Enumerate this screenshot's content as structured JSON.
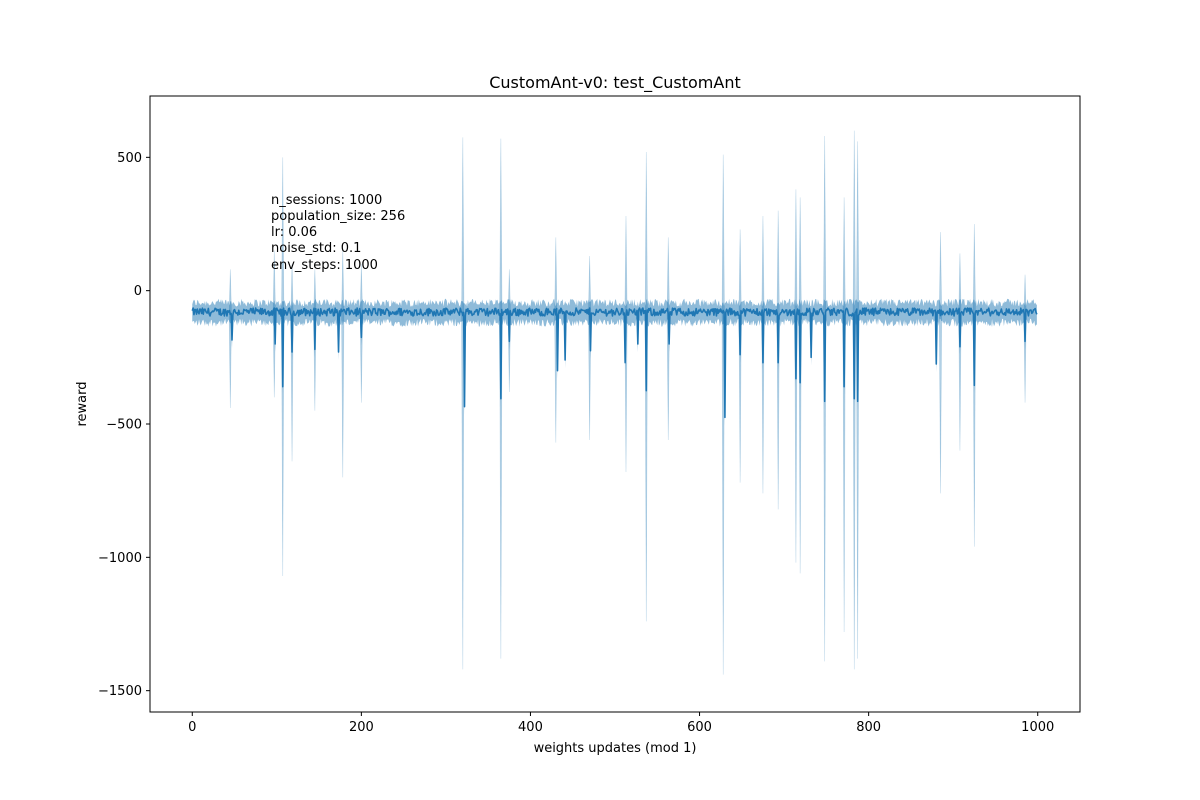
{
  "chart_data": {
    "type": "line",
    "title": "CustomAnt-v0: test_CustomAnt",
    "xlabel": "weights updates (mod 1)",
    "ylabel": "reward",
    "xlim": [
      -50,
      1050
    ],
    "ylim": [
      -1580,
      730
    ],
    "x_ticks": [
      0,
      200,
      400,
      600,
      800,
      1000
    ],
    "x_tick_labels": [
      "0",
      "200",
      "400",
      "600",
      "800",
      "1000"
    ],
    "y_ticks": [
      500,
      0,
      -500,
      -1000,
      -1500
    ],
    "y_tick_labels": [
      "500",
      "0",
      "−500",
      "−1000",
      "−1500"
    ],
    "grid": false,
    "line_color": "#1f77b4",
    "band_color": "#1f77b4",
    "band_fill_opacity": 0.5,
    "spike_opacity": 0.35,
    "annotation_lines": [
      "n_sessions: 1000",
      "population_size: 256",
      "lr: 0.06",
      "noise_std: 0.1",
      "env_steps: 1000"
    ],
    "series": [
      {
        "x_start": 0,
        "x_end": 999,
        "baseline_mean": -80,
        "band_upper_typical": -45,
        "band_lower_typical": -120,
        "mean_dips": [
          {
            "x": 47,
            "y": -185
          },
          {
            "x": 98,
            "y": -200
          },
          {
            "x": 107,
            "y": -360
          },
          {
            "x": 118,
            "y": -230
          },
          {
            "x": 145,
            "y": -220
          },
          {
            "x": 173,
            "y": -230
          },
          {
            "x": 200,
            "y": -175
          },
          {
            "x": 322,
            "y": -435
          },
          {
            "x": 365,
            "y": -405
          },
          {
            "x": 375,
            "y": -190
          },
          {
            "x": 432,
            "y": -300
          },
          {
            "x": 441,
            "y": -260
          },
          {
            "x": 471,
            "y": -225
          },
          {
            "x": 512,
            "y": -270
          },
          {
            "x": 527,
            "y": -200
          },
          {
            "x": 537,
            "y": -375
          },
          {
            "x": 564,
            "y": -200
          },
          {
            "x": 630,
            "y": -475
          },
          {
            "x": 648,
            "y": -240
          },
          {
            "x": 675,
            "y": -270
          },
          {
            "x": 693,
            "y": -270
          },
          {
            "x": 714,
            "y": -330
          },
          {
            "x": 719,
            "y": -345
          },
          {
            "x": 732,
            "y": -250
          },
          {
            "x": 748,
            "y": -415
          },
          {
            "x": 771,
            "y": -360
          },
          {
            "x": 783,
            "y": -405
          },
          {
            "x": 787,
            "y": -415
          },
          {
            "x": 880,
            "y": -275
          },
          {
            "x": 908,
            "y": -210
          },
          {
            "x": 925,
            "y": -355
          },
          {
            "x": 985,
            "y": -190
          }
        ],
        "band_spikes": [
          {
            "x": 45,
            "lower": -440,
            "upper": 80
          },
          {
            "x": 97,
            "lower": -400,
            "upper": 150
          },
          {
            "x": 107,
            "lower": -1070,
            "upper": 500
          },
          {
            "x": 118,
            "lower": -640,
            "upper": 100
          },
          {
            "x": 145,
            "lower": -450,
            "upper": 80
          },
          {
            "x": 178,
            "lower": -700,
            "upper": 150
          },
          {
            "x": 200,
            "lower": -420,
            "upper": 100
          },
          {
            "x": 320,
            "lower": -1420,
            "upper": 575
          },
          {
            "x": 365,
            "lower": -1380,
            "upper": 570
          },
          {
            "x": 375,
            "lower": -380,
            "upper": 80
          },
          {
            "x": 430,
            "lower": -570,
            "upper": 200
          },
          {
            "x": 470,
            "lower": -560,
            "upper": 130
          },
          {
            "x": 513,
            "lower": -680,
            "upper": 280
          },
          {
            "x": 537,
            "lower": -1240,
            "upper": 520
          },
          {
            "x": 563,
            "lower": -560,
            "upper": 200
          },
          {
            "x": 628,
            "lower": -1440,
            "upper": 510
          },
          {
            "x": 648,
            "lower": -720,
            "upper": 230
          },
          {
            "x": 675,
            "lower": -760,
            "upper": 280
          },
          {
            "x": 693,
            "lower": -820,
            "upper": 300
          },
          {
            "x": 714,
            "lower": -1020,
            "upper": 380
          },
          {
            "x": 719,
            "lower": -1060,
            "upper": 350
          },
          {
            "x": 748,
            "lower": -1390,
            "upper": 580
          },
          {
            "x": 771,
            "lower": -1280,
            "upper": 350
          },
          {
            "x": 783,
            "lower": -1420,
            "upper": 600
          },
          {
            "x": 787,
            "lower": -1380,
            "upper": 560
          },
          {
            "x": 885,
            "lower": -760,
            "upper": 220
          },
          {
            "x": 908,
            "lower": -600,
            "upper": 140
          },
          {
            "x": 925,
            "lower": -960,
            "upper": 250
          },
          {
            "x": 985,
            "lower": -420,
            "upper": 60
          }
        ]
      }
    ]
  }
}
